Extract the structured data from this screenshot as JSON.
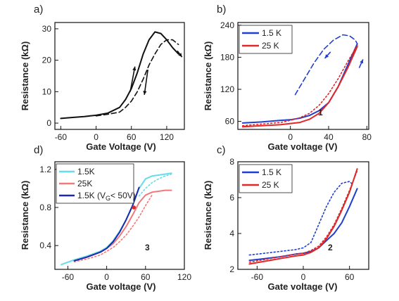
{
  "chart_data": [
    {
      "panel": "a)",
      "type": "line",
      "xlabel": "Gate Voltage (V)",
      "ylabel": "Resistance (kΩ)",
      "xlim": [
        -70,
        150
      ],
      "ylim": [
        -2,
        32
      ],
      "xticks": [
        -60,
        0,
        60,
        120
      ],
      "yticks": [
        0,
        10,
        20,
        30
      ],
      "series": [
        {
          "style": "solid",
          "color": "#111111",
          "x": [
            -60,
            -40,
            -20,
            0,
            20,
            40,
            50,
            60,
            70,
            80,
            90,
            100,
            110,
            120,
            130,
            140
          ],
          "y": [
            1.5,
            1.8,
            2.1,
            2.5,
            3.2,
            5,
            7.5,
            11,
            16,
            22,
            26.5,
            29,
            28.5,
            26.5,
            24,
            22
          ]
        },
        {
          "style": "dashed",
          "color": "#111111",
          "x": [
            0,
            20,
            40,
            50,
            60,
            70,
            80,
            90,
            100,
            110,
            120,
            130,
            140
          ],
          "y": [
            2.3,
            2.8,
            3.5,
            5,
            7,
            10,
            14,
            18.5,
            22,
            25,
            26.5,
            26.5,
            25
          ]
        }
      ]
    },
    {
      "panel": "b)",
      "type": "line",
      "xlabel": "Gate voltage (V)",
      "ylabel": "Resistance (kΩ)",
      "xlim": [
        -55,
        82
      ],
      "ylim": [
        45,
        245
      ],
      "xticks": [
        0,
        40,
        80
      ],
      "yticks": [
        60,
        120,
        180,
        240
      ],
      "annotation": "1",
      "legend": [
        {
          "name": "1.5 K",
          "color": "#1f3fd0"
        },
        {
          "name": "25 K",
          "color": "#e02828"
        }
      ],
      "series": [
        {
          "style": "solid",
          "color": "#1f3fd0",
          "x": [
            -50,
            -30,
            -10,
            0,
            10,
            20,
            30,
            40,
            50,
            60,
            70
          ],
          "y": [
            57,
            59,
            62,
            63,
            66,
            71,
            80,
            95,
            125,
            165,
            205
          ]
        },
        {
          "style": "dashed",
          "color": "#1f3fd0",
          "x": [
            5,
            15,
            25,
            35,
            45,
            55,
            62,
            68,
            70
          ],
          "y": [
            110,
            140,
            170,
            195,
            212,
            222,
            220,
            212,
            205
          ]
        },
        {
          "style": "solid",
          "color": "#e02828",
          "x": [
            -50,
            -30,
            -10,
            0,
            10,
            20,
            30,
            40,
            50,
            60,
            70
          ],
          "y": [
            50,
            52,
            54,
            56,
            58,
            64,
            75,
            95,
            125,
            160,
            200
          ]
        },
        {
          "style": "dotted",
          "color": "#e02828",
          "x": [
            -50,
            -30,
            -10,
            0,
            10,
            20,
            30,
            40,
            50,
            60,
            70
          ],
          "y": [
            52,
            55,
            58,
            62,
            67,
            75,
            90,
            112,
            140,
            172,
            202
          ]
        }
      ]
    },
    {
      "panel": "d)",
      "type": "line",
      "xlabel": "Gate voltage (V)",
      "ylabel": "Resistance (kΩ)",
      "xlim": [
        -80,
        120
      ],
      "ylim": [
        0.15,
        1.28
      ],
      "xticks": [
        -60,
        0,
        60,
        120
      ],
      "yticks": [
        0.4,
        0.8,
        1.2
      ],
      "annotation": "3",
      "legend": [
        {
          "name": "1.5K",
          "color": "#66dde8"
        },
        {
          "name": "25K",
          "color": "#f07a7a"
        },
        {
          "name": "1.5K (V",
          "sub": "G",
          "tail": "< 50V)",
          "color": "#1a2ab0"
        }
      ],
      "series": [
        {
          "style": "solid",
          "color": "#66dde8",
          "x": [
            -70,
            -50,
            -30,
            -10,
            0,
            10,
            20,
            30,
            40,
            50,
            60,
            70,
            80,
            90,
            100
          ],
          "y": [
            0.2,
            0.25,
            0.29,
            0.34,
            0.38,
            0.45,
            0.55,
            0.67,
            0.82,
            1,
            1.1,
            1.13,
            1.14,
            1.15,
            1.16
          ]
        },
        {
          "style": "dotted",
          "color": "#66dde8",
          "x": [
            50,
            60,
            70,
            80,
            90,
            100
          ],
          "y": [
            0.92,
            1,
            1.06,
            1.1,
            1.13,
            1.15
          ]
        },
        {
          "style": "solid",
          "color": "#f07a7a",
          "x": [
            -50,
            -30,
            -10,
            0,
            10,
            20,
            30,
            40,
            50,
            60,
            70,
            80,
            90,
            100
          ],
          "y": [
            0.24,
            0.28,
            0.33,
            0.37,
            0.42,
            0.5,
            0.6,
            0.72,
            0.85,
            0.93,
            0.96,
            0.97,
            0.98,
            0.98
          ]
        },
        {
          "style": "dotted",
          "color": "#f07a7a",
          "x": [
            -50,
            -30,
            -10,
            0,
            10,
            20,
            30,
            40,
            50,
            60,
            70
          ],
          "y": [
            0.23,
            0.26,
            0.3,
            0.34,
            0.38,
            0.44,
            0.51,
            0.6,
            0.7,
            0.82,
            0.93
          ]
        },
        {
          "style": "solid",
          "color": "#1a2ab0",
          "x": [
            -50,
            -30,
            -10,
            0,
            10,
            20,
            30,
            40,
            50
          ],
          "y": [
            0.24,
            0.28,
            0.33,
            0.37,
            0.44,
            0.54,
            0.67,
            0.82,
            1.01
          ]
        }
      ],
      "marker": {
        "x": 42,
        "y": 0.8,
        "color": "#e02828"
      }
    },
    {
      "panel": "c)",
      "type": "line",
      "xlabel": "Gate voltage (V)",
      "ylabel": "Resistance (kΩ)",
      "xlim": [
        -85,
        85
      ],
      "ylim": [
        2,
        8
      ],
      "xticks": [
        -60,
        0,
        60
      ],
      "yticks": [
        2,
        4,
        6,
        8
      ],
      "annotation": "2",
      "legend": [
        {
          "name": "1.5 K",
          "color": "#1f3fd0"
        },
        {
          "name": "25 K",
          "color": "#e02828"
        }
      ],
      "series": [
        {
          "style": "solid",
          "color": "#1f3fd0",
          "x": [
            -70,
            -50,
            -30,
            -10,
            0,
            10,
            20,
            30,
            40,
            50,
            60,
            70
          ],
          "y": [
            2.5,
            2.6,
            2.7,
            2.85,
            2.9,
            3,
            3.2,
            3.6,
            4,
            4.6,
            5.5,
            6.5
          ]
        },
        {
          "style": "dotted",
          "color": "#1f3fd0",
          "x": [
            -70,
            -50,
            -30,
            -10,
            0,
            10,
            20,
            30,
            40,
            50,
            60,
            65
          ],
          "y": [
            2.8,
            2.9,
            3,
            3.1,
            3.2,
            3.5,
            4.5,
            5.5,
            6.3,
            6.8,
            6.9,
            6.7
          ]
        },
        {
          "style": "solid",
          "color": "#e02828",
          "x": [
            -70,
            -50,
            -30,
            -10,
            0,
            10,
            20,
            30,
            40,
            50,
            60,
            70
          ],
          "y": [
            2.3,
            2.45,
            2.6,
            2.75,
            2.8,
            2.95,
            3.2,
            3.7,
            4.4,
            5.3,
            6.3,
            7.6
          ]
        },
        {
          "style": "dotted",
          "color": "#e02828",
          "x": [
            -70,
            -50,
            -30,
            -10,
            0,
            10,
            20,
            30,
            40,
            50,
            60,
            70
          ],
          "y": [
            2.4,
            2.55,
            2.7,
            2.85,
            2.9,
            3.05,
            3.3,
            3.8,
            4.5,
            5.4,
            6.4,
            7.5
          ]
        }
      ]
    }
  ]
}
